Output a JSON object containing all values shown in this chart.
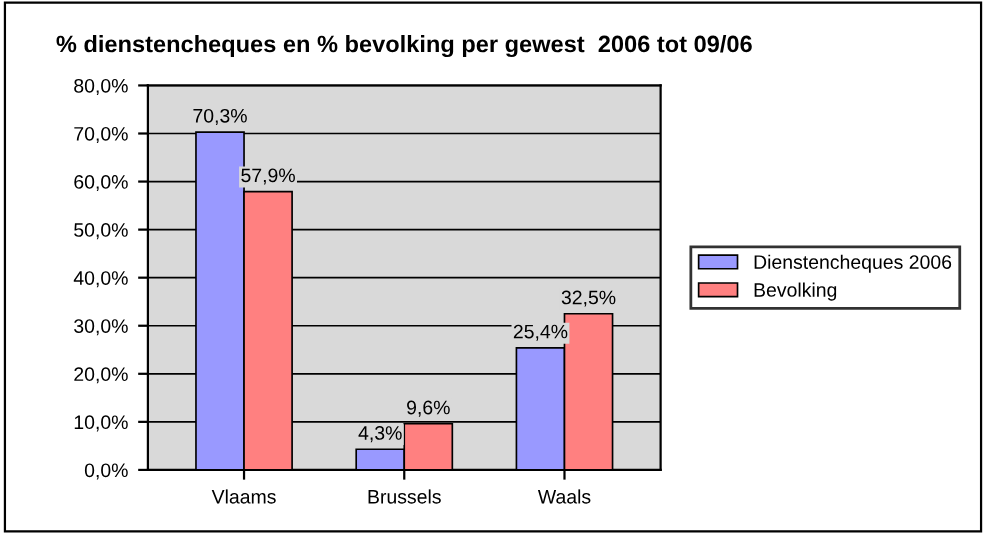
{
  "chart_data": {
    "type": "bar",
    "title": "% dienstencheques en % bevolking per gewest  2006 tot 09/06",
    "categories": [
      "Vlaams",
      "Brussels",
      "Waals"
    ],
    "series": [
      {
        "name": "Dienstencheques 2006",
        "color": "#9999ff",
        "values": [
          70.3,
          4.3,
          25.4
        ],
        "value_labels": [
          "70,3%",
          "4,3%",
          "25,4%"
        ]
      },
      {
        "name": "Bevolking",
        "color": "#ff8080",
        "values": [
          57.9,
          9.6,
          32.5
        ],
        "value_labels": [
          "57,9%",
          "9,6%",
          "32,5%"
        ]
      }
    ],
    "ylim": [
      0,
      80
    ],
    "yticks": [
      {
        "value": 0,
        "label": "0,0%"
      },
      {
        "value": 10,
        "label": "10,0%"
      },
      {
        "value": 20,
        "label": "20,0%"
      },
      {
        "value": 30,
        "label": "30,0%"
      },
      {
        "value": 40,
        "label": "40,0%"
      },
      {
        "value": 50,
        "label": "50,0%"
      },
      {
        "value": 60,
        "label": "60,0%"
      },
      {
        "value": 70,
        "label": "70,0%"
      },
      {
        "value": 80,
        "label": "80,0%"
      }
    ],
    "grid": "y",
    "legend": "right"
  }
}
